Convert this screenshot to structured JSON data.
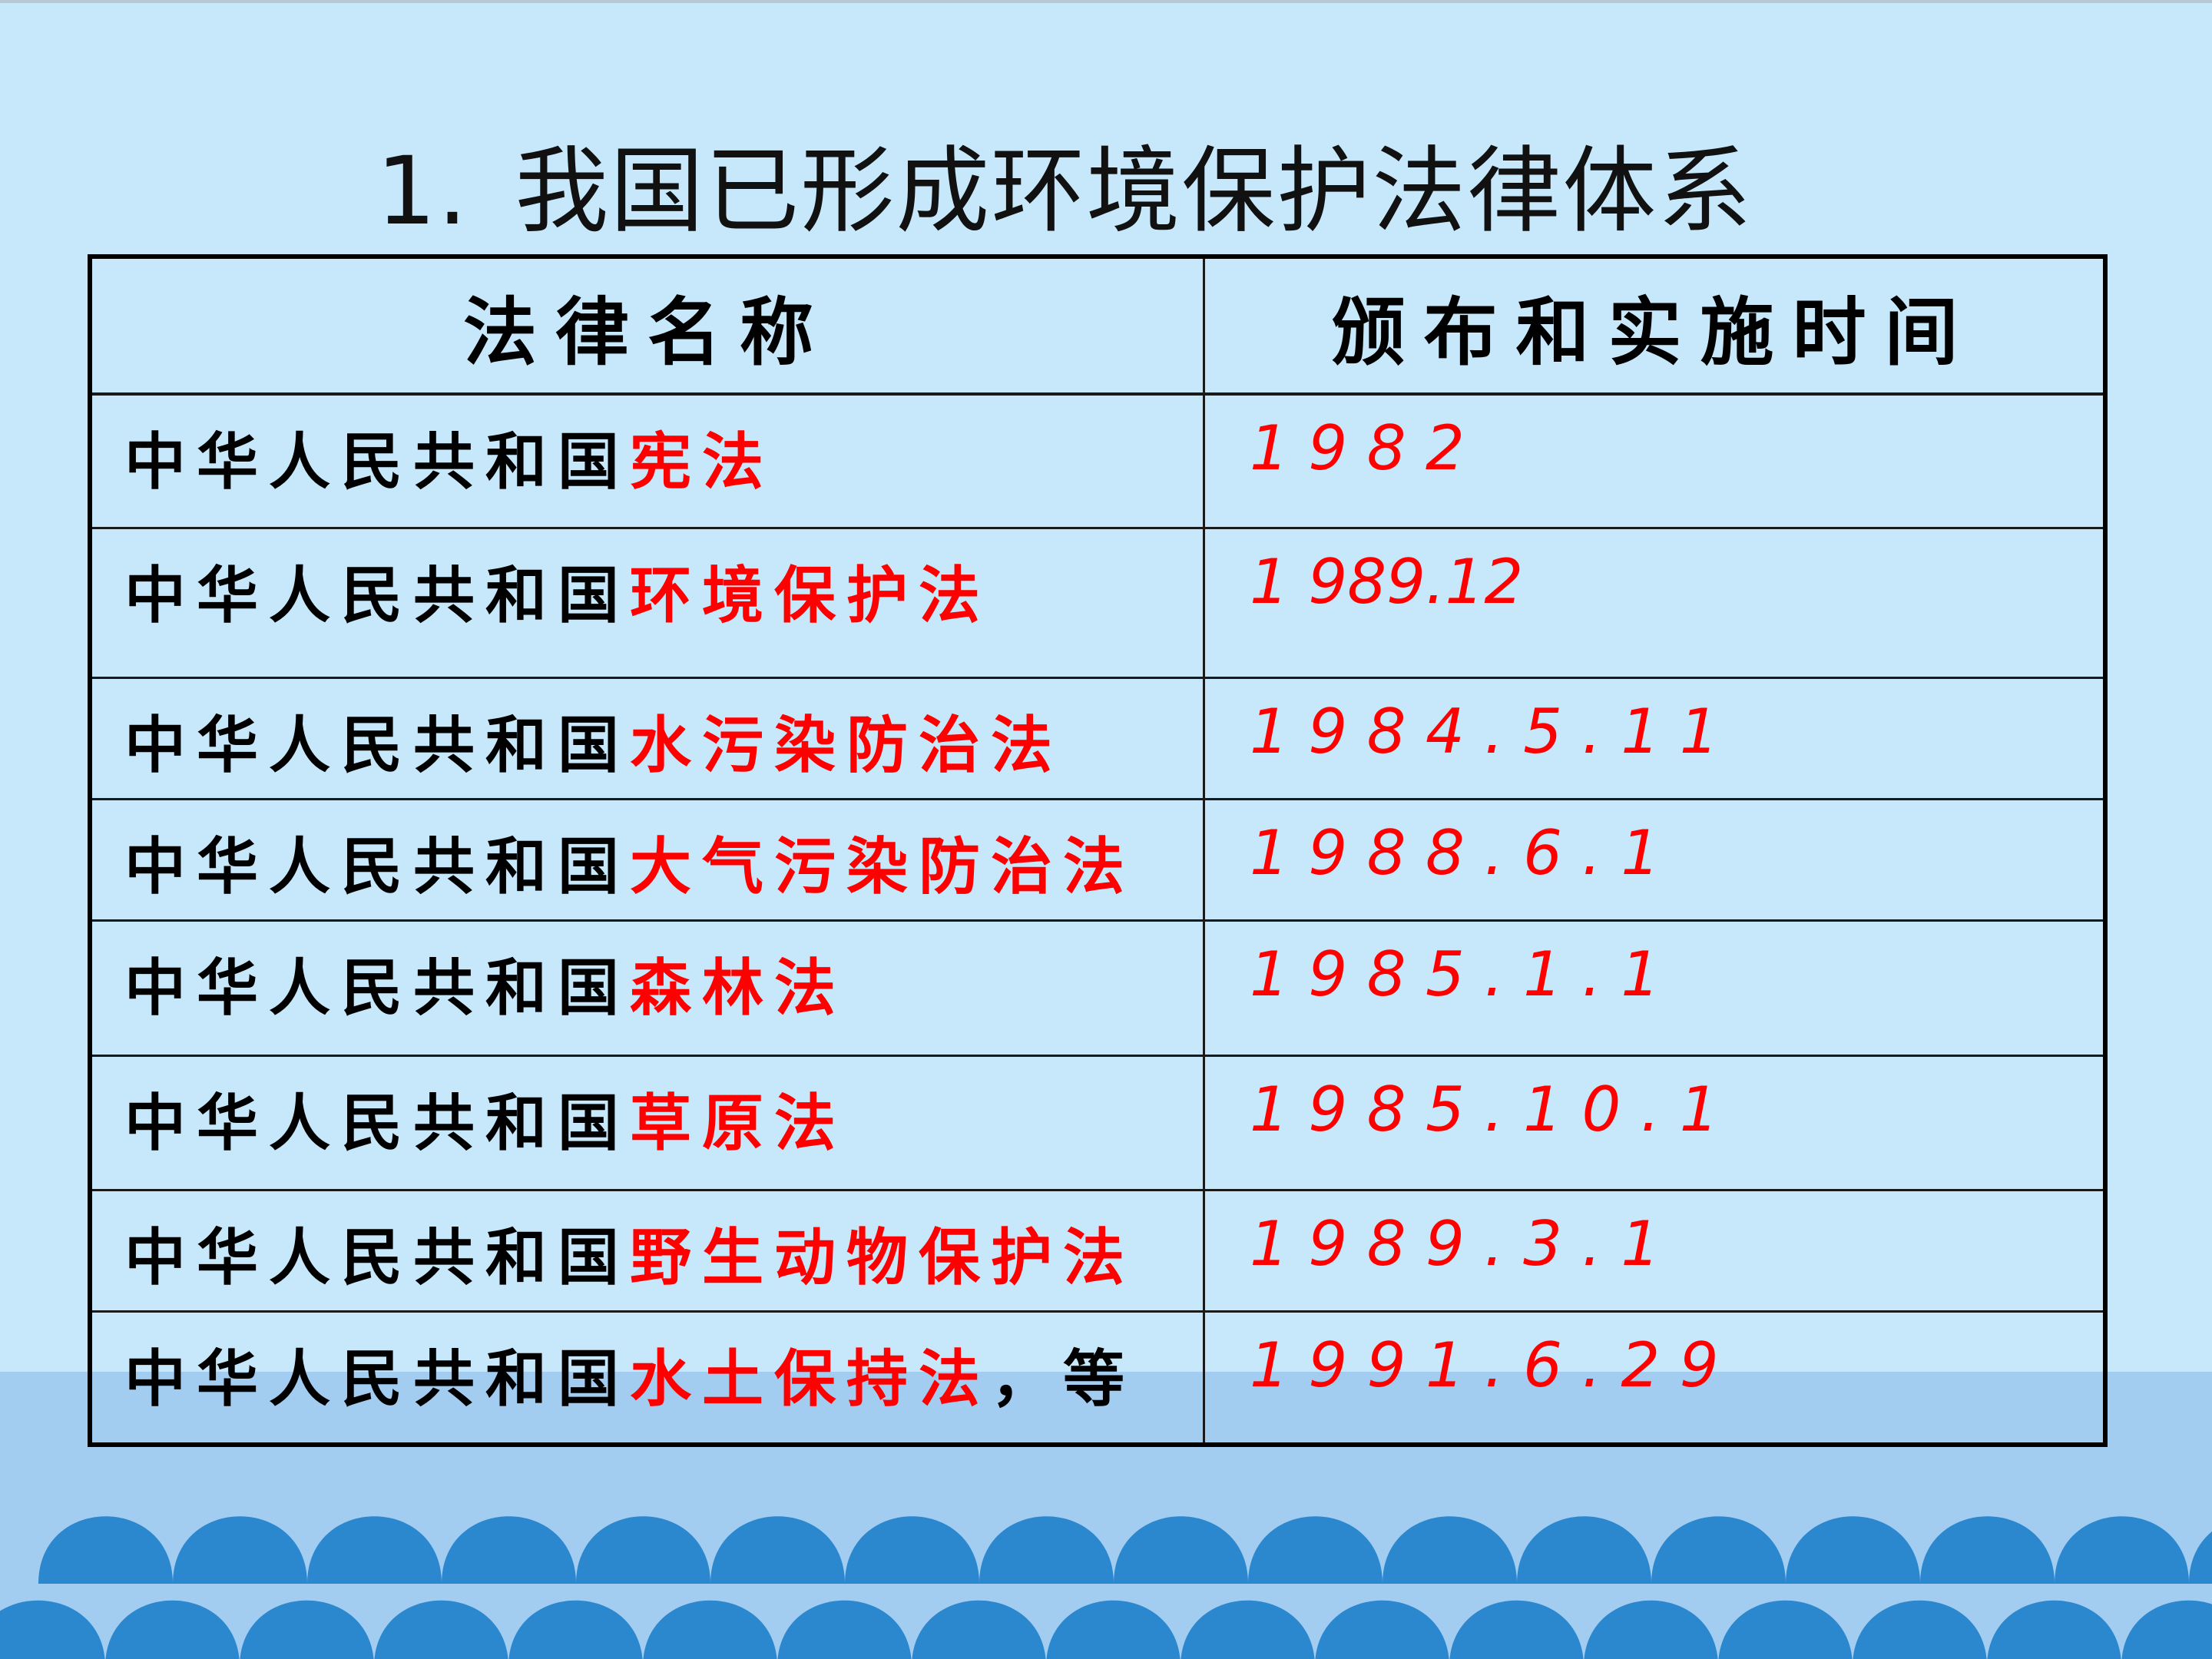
{
  "title": {
    "number": "1.",
    "text": "我国已形成环境保护法律体系"
  },
  "table": {
    "headers": [
      "法律名称",
      "颁布和实施时间"
    ],
    "rows": [
      {
        "prefix": "中华人民共和国",
        "name": "宪法",
        "suffix": "",
        "date": "1 9 8 2"
      },
      {
        "prefix": "中华人民共和国",
        "name": "环境保护法",
        "suffix": "",
        "date": "1 989.12"
      },
      {
        "prefix": "中华人民共和国",
        "name": "水污染防治法",
        "suffix": "",
        "date": "1 9 8 4 . 5 . 1 1"
      },
      {
        "prefix": "中华人民共和国",
        "name": "大气污染防治法",
        "suffix": "",
        "date": "1 9 8 8 . 6 . 1"
      },
      {
        "prefix": "中华人民共和国",
        "name": "森林法",
        "suffix": "",
        "date": "1 9 8 5 . 1 . 1"
      },
      {
        "prefix": "中华人民共和国",
        "name": "草原法",
        "suffix": "",
        "date": "1 9 8 5 . 1 0 . 1"
      },
      {
        "prefix": "中华人民共和国",
        "name": "野生动物保护法",
        "suffix": "",
        "date": "1 9 8 9 . 3 . 1"
      },
      {
        "prefix": "中华人民共和国",
        "name": "水土保持法",
        "suffix": "，等",
        "date": "1 9 9 1 . 6 . 2 9"
      }
    ]
  },
  "colors": {
    "background": "#c7e8fa",
    "lower_band": "#a2cdf1",
    "wave": "#2b88cf",
    "highlight": "#ff0000"
  }
}
